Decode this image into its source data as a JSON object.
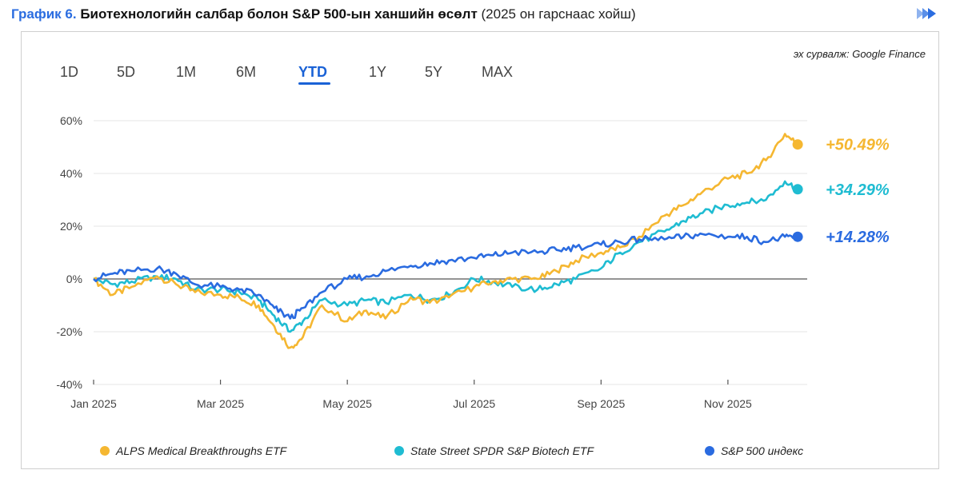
{
  "header": {
    "prefix": "График 6.",
    "title": "Биотехнологийн салбар болон S&P 500-ын ханшийн өсөлт",
    "subtitle": "(2025 он гарснаас хойш)"
  },
  "source": "эх сурвалж: Google Finance",
  "range_tabs": [
    "1D",
    "5D",
    "1M",
    "6M",
    "YTD",
    "1Y",
    "5Y",
    "MAX"
  ],
  "active_tab": "YTD",
  "colors": {
    "alps": "#f5b731",
    "xbi": "#1fbcd2",
    "spx": "#2a6be0",
    "accent": "#1a62d6"
  },
  "chart_data": {
    "type": "line",
    "title": "Биотехнологийн салбар болон S&P 500-ын ханшийн өсөлт",
    "xlabel": "",
    "ylabel": "",
    "ylim": [
      -40,
      60
    ],
    "yticks": [
      60,
      40,
      20,
      0,
      -20,
      -40
    ],
    "ytick_labels": [
      "60%",
      "40%",
      "20%",
      "0%",
      "-20%",
      "-40%"
    ],
    "xtick_labels": [
      "Jan 2025",
      "Mar 2025",
      "May 2025",
      "Jul 2025",
      "Sep 2025",
      "Nov 2025"
    ],
    "xtick_positions": [
      0,
      2,
      4,
      6,
      8,
      10
    ],
    "x_months": [
      0,
      0.3,
      0.6,
      1.0,
      1.3,
      1.6,
      2.0,
      2.3,
      2.6,
      2.85,
      3.1,
      3.3,
      3.6,
      4.0,
      4.3,
      4.6,
      5.0,
      5.3,
      5.6,
      6.0,
      6.3,
      6.6,
      7.0,
      7.3,
      7.6,
      8.0,
      8.3,
      8.6,
      9.0,
      9.3,
      9.6,
      10.0,
      10.3,
      10.6,
      10.9,
      11.1
    ],
    "series": [
      {
        "name": "ALPS Medical Breakthroughs ETF",
        "end_label": "+50.49%",
        "values": [
          0,
          -6,
          -3,
          1,
          -2,
          -5,
          -6,
          -7,
          -10,
          -18,
          -26,
          -22,
          -10,
          -16,
          -12,
          -15,
          -7,
          -9,
          -7,
          -3,
          -1,
          0,
          0,
          3,
          7,
          10,
          12,
          16,
          24,
          28,
          33,
          38,
          40,
          45,
          55,
          51
        ]
      },
      {
        "name": "State Street SPDR S&P Biotech ETF",
        "end_label": "+34.29%",
        "values": [
          0,
          -2,
          -1,
          1,
          0,
          -4,
          -4,
          -5,
          -8,
          -14,
          -20,
          -16,
          -8,
          -10,
          -8,
          -9,
          -6,
          -8,
          -6,
          0,
          -1,
          -3,
          -4,
          -2,
          0,
          4,
          10,
          14,
          18,
          22,
          25,
          28,
          29,
          30,
          37,
          34
        ]
      },
      {
        "name": "S&P 500 индекс",
        "end_label": "+14.28%",
        "values": [
          0,
          2,
          3,
          4,
          2,
          -2,
          -3,
          -4,
          -6,
          -11,
          -15,
          -11,
          -5,
          0,
          1,
          3,
          5,
          6,
          7,
          8,
          9,
          10,
          10,
          11,
          12,
          13,
          14,
          15,
          15,
          16,
          17,
          16,
          16,
          14,
          16,
          16
        ]
      }
    ],
    "legend": [
      "ALPS Medical Breakthroughs ETF",
      "State Street SPDR S&P Biotech ETF",
      "S&P 500 индекс"
    ],
    "legend_position": "bottom",
    "grid": true
  }
}
